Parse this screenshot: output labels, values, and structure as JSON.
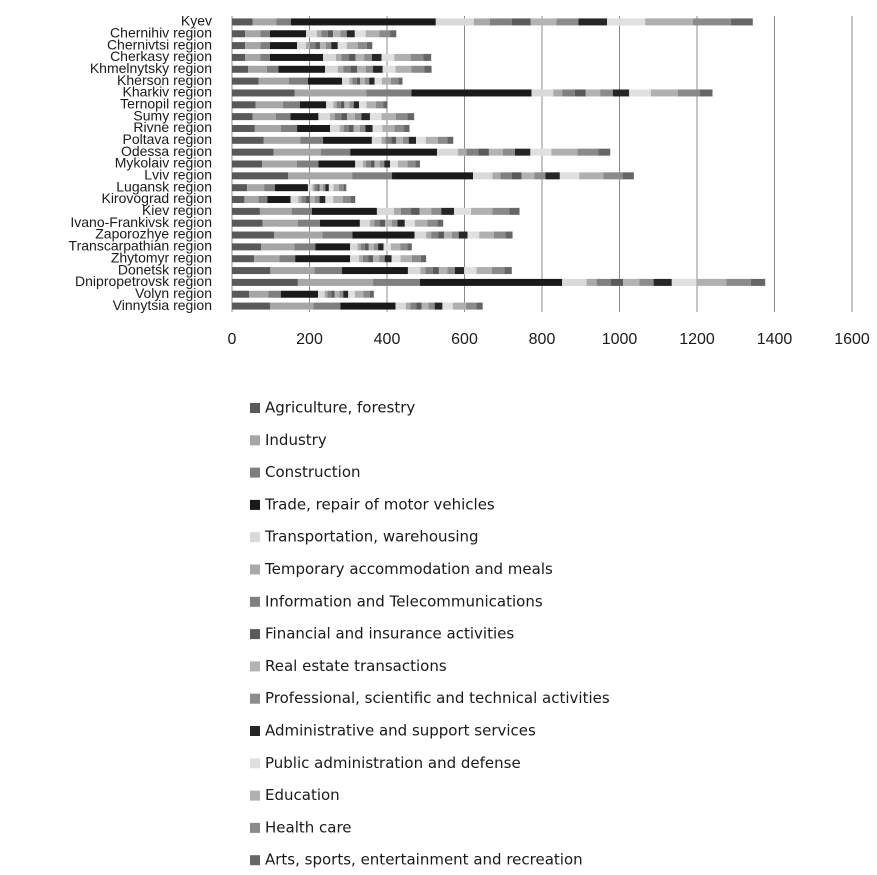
{
  "chart_data": {
    "type": "stacked-barh",
    "categories": [
      "Kyev",
      "Chernihiv region",
      "Chernivtsi region",
      "Cherkasy region",
      "Khmelnytsky region",
      "Kherson region",
      "Kharkiv region",
      "Ternopil region",
      "Sumy region",
      "Rivne region",
      "Poltava region",
      "Odessa region",
      "Mykolaiv region",
      "Lviv region",
      "Lugansk region",
      "Kirovograd region",
      "Kiev region",
      "Ivano-Frankivsk region",
      "Zaporozhye region",
      "Transcarpathian region",
      "Zhytomyr region",
      "Donetsk region",
      "Dnipropetrovsk region",
      "Volyn region",
      "Vinnytsia region"
    ],
    "xlim": [
      0,
      1600
    ],
    "xticks": [
      0,
      200,
      400,
      600,
      800,
      1000,
      1200,
      1400,
      1600
    ],
    "grid": true,
    "legend": "bottom",
    "series": [
      {
        "name": "Agriculture, forestry",
        "color": "#595959",
        "values": [
          53,
          34,
          34,
          34,
          42,
          69,
          162,
          61,
          53,
          59,
          82,
          107,
          78,
          145,
          39,
          32,
          72,
          79,
          109,
          75,
          57,
          99,
          170,
          44,
          98
        ]
      },
      {
        "name": "Industry",
        "color": "#a6a6a6",
        "values": [
          61,
          39,
          39,
          39,
          48,
          78,
          185,
          70,
          60,
          67,
          94,
          122,
          89,
          165,
          44,
          36,
          82,
          91,
          124,
          86,
          65,
          114,
          194,
          50,
          112
        ]
      },
      {
        "name": "Construction",
        "color": "#7f7f7f",
        "values": [
          38,
          25,
          25,
          25,
          30,
          49,
          116,
          44,
          38,
          42,
          59,
          76,
          56,
          103,
          28,
          23,
          52,
          57,
          78,
          54,
          41,
          71,
          121,
          32,
          70
        ]
      },
      {
        "name": "Trade, repair of motor vehicles",
        "color": "#1a1a1a",
        "values": [
          374,
          93,
          70,
          137,
          120,
          88,
          310,
          68,
          72,
          85,
          126,
          224,
          95,
          209,
          85,
          60,
          168,
          103,
          160,
          90,
          142,
          170,
          367,
          96,
          142
        ]
      },
      {
        "name": "Transportation, warehousing",
        "color": "#d9d9d9",
        "values": [
          98,
          28,
          23,
          33,
          33,
          19,
          56,
          19,
          30,
          25,
          25,
          54,
          20,
          50,
          12,
          20,
          44,
          26,
          30,
          19,
          23,
          32,
          63,
          17,
          27
        ]
      },
      {
        "name": "Temporary accommodation and meals",
        "color": "#a9a9a9",
        "values": [
          41,
          12,
          10,
          14,
          14,
          8,
          23,
          8,
          12,
          10,
          10,
          22,
          8,
          21,
          5,
          8,
          18,
          11,
          13,
          8,
          10,
          13,
          26,
          7,
          11
        ]
      },
      {
        "name": "Information and Telecommunications",
        "color": "#808080",
        "values": [
          57,
          16,
          14,
          20,
          19,
          11,
          33,
          11,
          17,
          14,
          15,
          31,
          12,
          29,
          7,
          12,
          26,
          15,
          18,
          11,
          14,
          19,
          37,
          10,
          16
        ]
      },
      {
        "name": "Financial and insurance activities",
        "color": "#5a5a5a",
        "values": [
          49,
          14,
          12,
          17,
          17,
          9,
          28,
          9,
          15,
          12,
          13,
          27,
          10,
          25,
          6,
          10,
          22,
          13,
          15,
          10,
          12,
          16,
          31,
          9,
          13
        ]
      },
      {
        "name": "Real estate transactions",
        "color": "#b3b3b3",
        "values": [
          66,
          19,
          15,
          22,
          22,
          12,
          37,
          13,
          20,
          16,
          17,
          36,
          13,
          33,
          8,
          13,
          30,
          17,
          20,
          13,
          16,
          22,
          42,
          12,
          18
        ]
      },
      {
        "name": "Professional, scientific and technical activities",
        "color": "#8c8c8c",
        "values": [
          57,
          16,
          14,
          20,
          19,
          11,
          33,
          11,
          17,
          14,
          15,
          31,
          12,
          29,
          7,
          12,
          26,
          15,
          18,
          11,
          14,
          19,
          37,
          10,
          16
        ]
      },
      {
        "name": "Administrative and support services",
        "color": "#262626",
        "values": [
          74,
          21,
          17,
          25,
          25,
          14,
          42,
          14,
          22,
          19,
          19,
          40,
          15,
          37,
          9,
          15,
          33,
          19,
          23,
          14,
          18,
          24,
          47,
          13,
          20
        ]
      },
      {
        "name": "Public administration and defense",
        "color": "#e0e0e0",
        "values": [
          98,
          28,
          23,
          33,
          33,
          19,
          56,
          19,
          30,
          25,
          25,
          54,
          20,
          50,
          12,
          20,
          44,
          26,
          30,
          19,
          23,
          32,
          63,
          17,
          27
        ]
      },
      {
        "name": "Education",
        "color": "#b0b0b0",
        "values": [
          123,
          35,
          29,
          42,
          41,
          23,
          70,
          24,
          37,
          31,
          31,
          67,
          25,
          62,
          14,
          25,
          55,
          32,
          38,
          24,
          29,
          40,
          78,
          22,
          34
        ]
      },
      {
        "name": "Health care",
        "color": "#8a8a8a",
        "values": [
          98,
          28,
          23,
          33,
          33,
          19,
          56,
          19,
          30,
          25,
          25,
          54,
          20,
          50,
          12,
          20,
          44,
          26,
          30,
          19,
          23,
          32,
          63,
          17,
          27
        ]
      },
      {
        "name": "Arts, sports, entertainment and recreation",
        "color": "#666666",
        "values": [
          57,
          16,
          14,
          20,
          19,
          11,
          33,
          11,
          17,
          14,
          15,
          31,
          12,
          29,
          7,
          12,
          26,
          15,
          18,
          11,
          14,
          19,
          37,
          10,
          16
        ]
      }
    ]
  }
}
